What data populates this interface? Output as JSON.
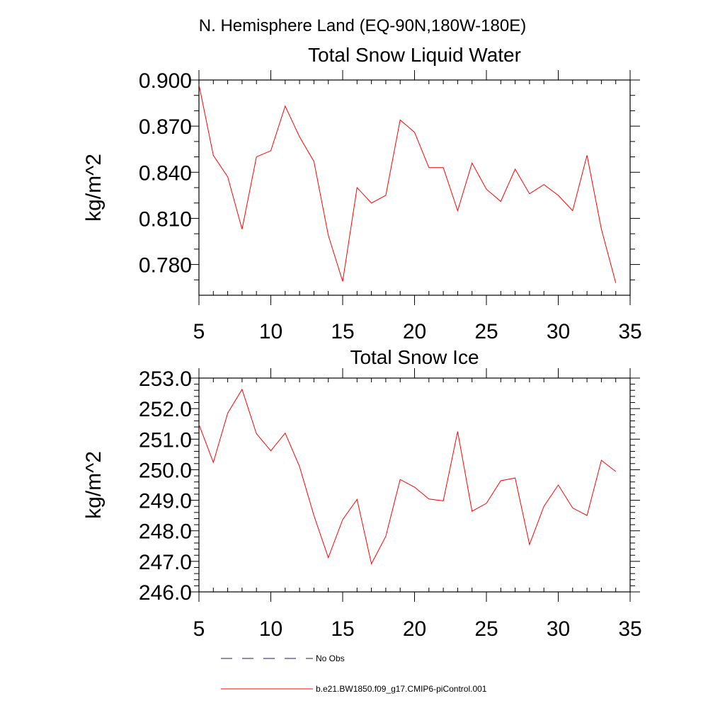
{
  "page_title": "N. Hemisphere Land (EQ-90N,180W-180E)",
  "colors": {
    "model": "#ff0000",
    "obs": "#1a1a6e"
  },
  "legend": {
    "obs_label": "No Obs",
    "model_label": "b.e21.BW1850.f09_g17.CMIP6-piControl.001"
  },
  "chart_data": [
    {
      "type": "line",
      "title": "Total Snow Liquid Water",
      "xlabel": "",
      "ylabel": "kg/m^2",
      "xlim": [
        5,
        35
      ],
      "ylim": [
        0.76,
        0.9
      ],
      "x_ticks": [
        5,
        10,
        15,
        20,
        25,
        30,
        35
      ],
      "x_tick_labels": [
        "5",
        "10",
        "15",
        "20",
        "25",
        "30",
        "35"
      ],
      "y_ticks": [
        0.78,
        0.81,
        0.84,
        0.87,
        0.9
      ],
      "y_tick_labels": [
        "0.780",
        "0.810",
        "0.840",
        "0.870",
        "0.900"
      ],
      "y_minor_step": 0.01,
      "series": [
        {
          "name": "b.e21.BW1850.f09_g17.CMIP6-piControl.001",
          "x": [
            5,
            6,
            7,
            8,
            9,
            10,
            11,
            12,
            13,
            14,
            15,
            16,
            17,
            18,
            19,
            20,
            21,
            22,
            23,
            24,
            25,
            26,
            27,
            28,
            29,
            30,
            31,
            32,
            33,
            34
          ],
          "values": [
            0.897,
            0.851,
            0.837,
            0.803,
            0.85,
            0.854,
            0.883,
            0.863,
            0.847,
            0.799,
            0.769,
            0.83,
            0.82,
            0.825,
            0.874,
            0.866,
            0.843,
            0.843,
            0.815,
            0.846,
            0.829,
            0.821,
            0.842,
            0.826,
            0.832,
            0.825,
            0.815,
            0.851,
            0.803,
            0.768
          ]
        }
      ]
    },
    {
      "type": "line",
      "title": "Total Snow Ice",
      "xlabel": "",
      "ylabel": "kg/m^2",
      "xlim": [
        5,
        35
      ],
      "ylim": [
        246.0,
        253.0
      ],
      "x_ticks": [
        5,
        10,
        15,
        20,
        25,
        30,
        35
      ],
      "x_tick_labels": [
        "5",
        "10",
        "15",
        "20",
        "25",
        "30",
        "35"
      ],
      "y_ticks": [
        246.0,
        247.0,
        248.0,
        249.0,
        250.0,
        251.0,
        252.0,
        253.0
      ],
      "y_tick_labels": [
        "246.0",
        "247.0",
        "248.0",
        "249.0",
        "250.0",
        "251.0",
        "252.0",
        "253.0"
      ],
      "y_minor_step": 0.2,
      "series": [
        {
          "name": "b.e21.BW1850.f09_g17.CMIP6-piControl.001",
          "x": [
            5,
            6,
            7,
            8,
            9,
            10,
            11,
            12,
            13,
            14,
            15,
            16,
            17,
            18,
            19,
            20,
            21,
            22,
            23,
            24,
            25,
            26,
            27,
            28,
            29,
            30,
            31,
            32,
            33,
            34
          ],
          "values": [
            251.48,
            250.24,
            251.85,
            252.63,
            251.18,
            250.62,
            251.2,
            250.1,
            248.5,
            247.12,
            248.37,
            249.03,
            246.92,
            247.82,
            249.68,
            249.43,
            249.04,
            248.98,
            251.25,
            248.64,
            248.9,
            249.64,
            249.73,
            247.55,
            248.8,
            249.5,
            248.75,
            248.5,
            250.31,
            249.94
          ]
        }
      ]
    }
  ]
}
